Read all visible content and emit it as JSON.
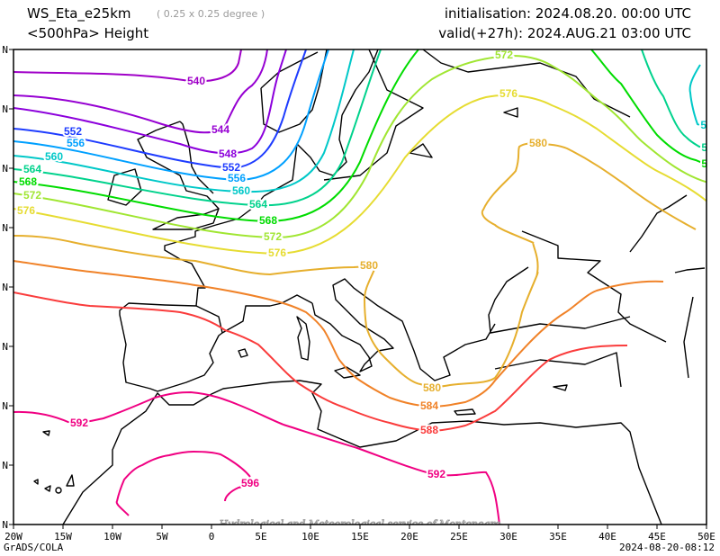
{
  "header": {
    "model": "WS_Eta_e25km",
    "resolution": "( 0.25 x 0.25 degree )",
    "field": "<500hPa> Height",
    "initialisation": "initialisation: 2024.08.20.  00:00 UTC",
    "valid": "valid(+27h): 2024.AUG.21 03:00 UTC"
  },
  "axes": {
    "lon_labels": [
      "20W",
      "15W",
      "10W",
      "5W",
      "0",
      "5E",
      "10E",
      "15E",
      "20E",
      "25E",
      "30E",
      "35E",
      "40E",
      "45E",
      "50E"
    ],
    "lat_labels": [
      "N",
      "N",
      "N",
      "N",
      "N",
      "N",
      "N",
      "N",
      "N"
    ]
  },
  "contours": {
    "c540": {
      "label": "540",
      "color": "#a000c8"
    },
    "c544": {
      "label": "544",
      "color": "#9600d2"
    },
    "c548": {
      "label": "548",
      "color": "#8c00dc"
    },
    "c552": {
      "label": "552",
      "color": "#1e3cff"
    },
    "c556": {
      "label": "556",
      "color": "#00a0ff"
    },
    "c560": {
      "label": "560",
      "color": "#00c8c8"
    },
    "c564": {
      "label": "564",
      "color": "#00d28c"
    },
    "c568": {
      "label": "568",
      "color": "#00dc00"
    },
    "c572": {
      "label": "572",
      "color": "#a0e632"
    },
    "c576": {
      "label": "576",
      "color": "#e6dc32"
    },
    "c580": {
      "label": "580",
      "color": "#e6af2d"
    },
    "c584": {
      "label": "584",
      "color": "#f08228"
    },
    "c588": {
      "label": "588",
      "color": "#fa3c3c"
    },
    "c592": {
      "label": "592",
      "color": "#f00082"
    },
    "c596": {
      "label": "596",
      "color": "#f00082"
    },
    "clipped_label": "56"
  },
  "footer": {
    "watermark": "Hydrological and Meteorological service of Montenegro",
    "software": "GrADS/COLA",
    "timestamp": "2024-08-20-08:12"
  }
}
